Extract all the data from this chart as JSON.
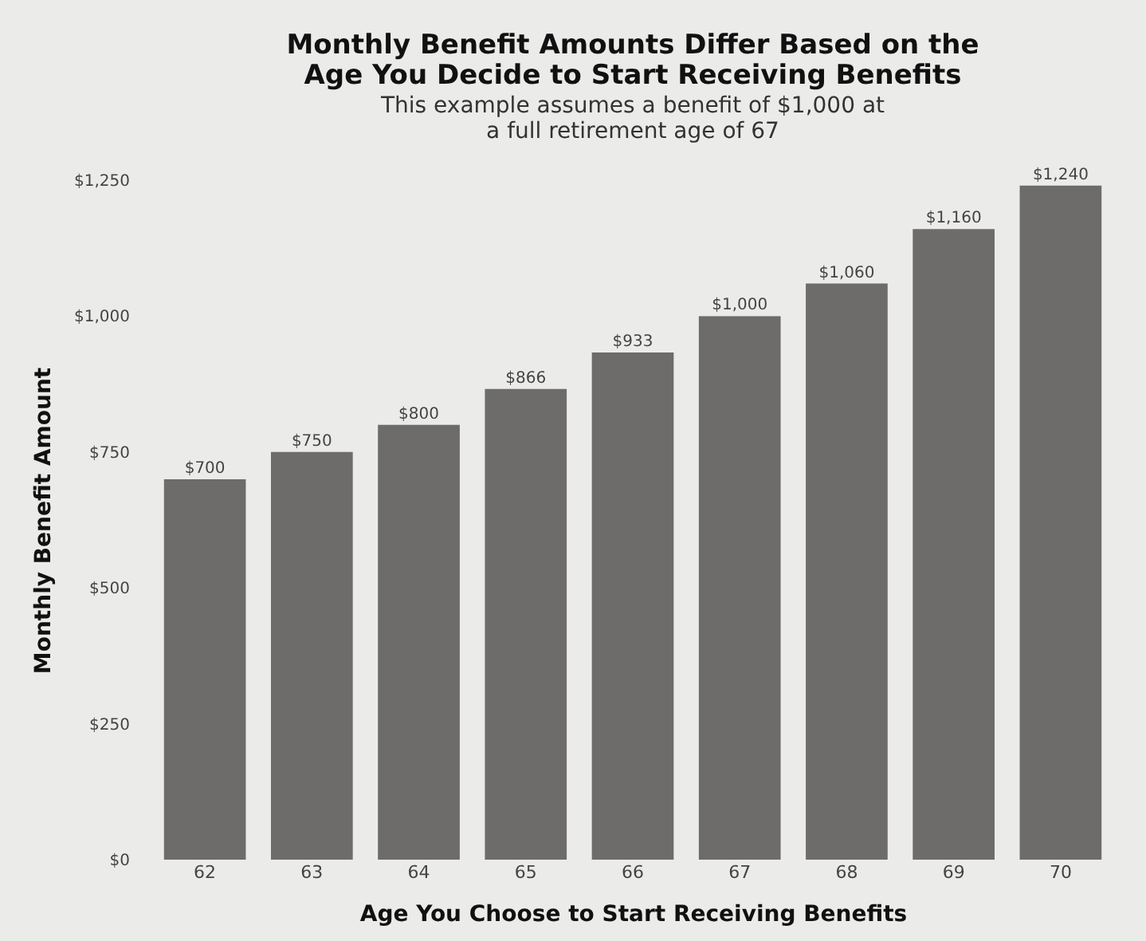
{
  "chart_data": {
    "type": "bar",
    "title": [
      "Monthly Benefit Amounts Differ Based on the",
      "Age You Decide to Start Receiving Benefits"
    ],
    "subtitle": [
      "This example assumes a benefit of $1,000 at",
      "a full retirement age of 67"
    ],
    "xlabel": "Age You Choose to Start Receiving Benefits",
    "ylabel": "Monthly Benefit Amount",
    "categories": [
      "62",
      "63",
      "64",
      "65",
      "66",
      "67",
      "68",
      "69",
      "70"
    ],
    "values": [
      700,
      750,
      800,
      866,
      933,
      1000,
      1060,
      1160,
      1240
    ],
    "value_labels": [
      "$700",
      "$750",
      "$800",
      "$866",
      "$933",
      "$1,000",
      "$1,060",
      "$1,160",
      "$1,240"
    ],
    "color": "#6d6c6a",
    "ylim": [
      0,
      1250
    ],
    "yticks": [
      {
        "value": 0,
        "label": "$0"
      },
      {
        "value": 250,
        "label": "$250"
      },
      {
        "value": 500,
        "label": "$500"
      },
      {
        "value": 750,
        "label": "$750"
      },
      {
        "value": 1000,
        "label": "$1,000"
      },
      {
        "value": 1250,
        "label": "$1,250"
      }
    ],
    "grid": false
  }
}
